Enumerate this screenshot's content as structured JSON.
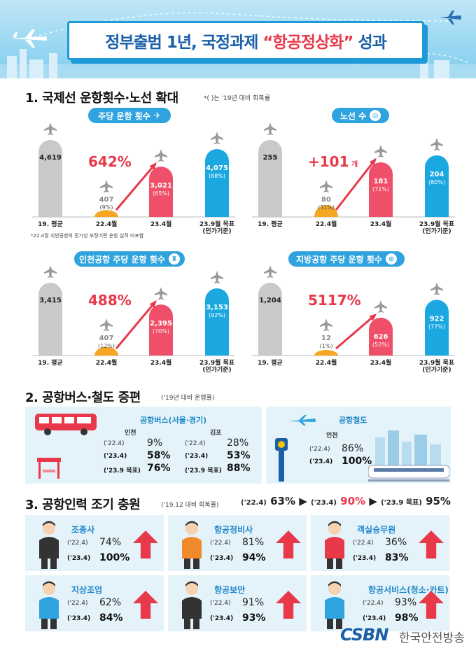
{
  "header": {
    "title_a": "정부출범 1년, 국정과제 ",
    "title_b": "“항공정상화”",
    "title_c": " 성과"
  },
  "section1": {
    "title": "1. 국제선 운항횟수·노선 확대",
    "note": "*( )는 '19년 대비 회복률",
    "footnote": "*22.4월 지방공항의 정기성 부정기편 운항 실적 미포함"
  },
  "section2": {
    "title": "2. 공항버스·철도 증편",
    "note": "('19년 대비 운행률)",
    "bus": {
      "title": "공항버스(서울·경기)",
      "groups": [
        {
          "name": "인천",
          "rows": [
            {
              "label": "('22.4)",
              "value": "9%",
              "bold": false
            },
            {
              "label": "('23.4)",
              "value": "58%",
              "bold": true
            },
            {
              "label": "('23.9 목표)",
              "value": "76%",
              "bold": true
            }
          ]
        },
        {
          "name": "김포",
          "rows": [
            {
              "label": "('22.4)",
              "value": "28%",
              "bold": false
            },
            {
              "label": "('23.4)",
              "value": "53%",
              "bold": true
            },
            {
              "label": "('23.9 목표)",
              "value": "88%",
              "bold": true
            }
          ]
        }
      ]
    },
    "rail": {
      "title": "공항철도",
      "group": "인천",
      "rows": [
        {
          "label": "('22.4)",
          "value": "86%",
          "bold": false
        },
        {
          "label": "('23.4)",
          "value": "100%",
          "bold": true
        }
      ]
    }
  },
  "section3": {
    "title": "3. 공항인력 조기 충원",
    "note": "('19.12 대비 회복률)",
    "summary": [
      {
        "label": "('22.4)",
        "value": "63%"
      },
      {
        "label": "('23.4)",
        "value": "90%"
      },
      {
        "label": "('23.9 목표)",
        "value": "95%"
      }
    ],
    "cards": [
      {
        "name": "조종사",
        "r1": "('22.4)",
        "v1": "74%",
        "r2": "('23.4)",
        "v2": "100%"
      },
      {
        "name": "항공정비사",
        "r1": "('22.4)",
        "v1": "81%",
        "r2": "('23.4)",
        "v2": "94%"
      },
      {
        "name": "객실승무원",
        "r1": "('22.4)",
        "v1": "36%",
        "r2": "('23.4)",
        "v2": "83%"
      },
      {
        "name": "지상조업",
        "r1": "('22.4)",
        "v1": "62%",
        "r2": "('23.4)",
        "v2": "84%"
      },
      {
        "name": "항공보안",
        "r1": "('22.4)",
        "v1": "91%",
        "r2": "('23.4)",
        "v2": "93%"
      },
      {
        "name": "항공서비스(청소·카트)",
        "r1": "('22.4)",
        "v1": "93%",
        "r2": "('23.4)",
        "v2": "98%"
      }
    ]
  },
  "watermark": {
    "logo": "CSBN",
    "text": "한국안전방송"
  },
  "colors": {
    "gray": "#c9c9c9",
    "orange": "#f5a623",
    "red": "#ef4f68",
    "blue": "#1ba8e0",
    "accent": "#e8394a"
  },
  "chart_data": [
    {
      "type": "bar",
      "title": "주당 운항 횟수",
      "categories": [
        "19. 평균",
        "22.4월",
        "23.4월",
        "23.9월 목표\n(인가기준)"
      ],
      "values": [
        4619,
        407,
        3021,
        4075
      ],
      "labels": [
        "4,619",
        "407",
        "3,021",
        "4,075"
      ],
      "pct": [
        "",
        "(9%)",
        "(65%)",
        "(88%)"
      ],
      "growth": "642%",
      "ylim": [
        0,
        4619
      ]
    },
    {
      "type": "bar",
      "title": "노선 수",
      "categories": [
        "19. 평균",
        "22.4월",
        "23.4월",
        "23.9월 목표\n(인가기준)"
      ],
      "values": [
        255,
        80,
        181,
        204
      ],
      "labels": [
        "255",
        "80",
        "181",
        "204"
      ],
      "pct": [
        "",
        "(31%)",
        "(71%)",
        "(80%)"
      ],
      "growth": "+101",
      "growth_unit": "개",
      "ylim": [
        0,
        255
      ]
    },
    {
      "type": "bar",
      "title": "인천공항 주당 운항 횟수",
      "categories": [
        "19. 평균",
        "22.4월",
        "23.4월",
        "23.9월 목표\n(인가기준)"
      ],
      "values": [
        3415,
        407,
        2395,
        3153
      ],
      "labels": [
        "3,415",
        "407",
        "2,395",
        "3,153"
      ],
      "pct": [
        "",
        "(12%)",
        "(70%)",
        "(92%)"
      ],
      "growth": "488%",
      "ylim": [
        0,
        3415
      ]
    },
    {
      "type": "bar",
      "title": "지방공항 주당 운항 횟수",
      "categories": [
        "19. 평균",
        "22.4월",
        "23.4월",
        "23.9월 목표\n(인가기준)"
      ],
      "values": [
        1204,
        12,
        626,
        922
      ],
      "labels": [
        "1,204",
        "12",
        "626",
        "922"
      ],
      "pct": [
        "",
        "(1%)",
        "(52%)",
        "(77%)"
      ],
      "growth": "5117%",
      "ylim": [
        0,
        1204
      ]
    }
  ]
}
